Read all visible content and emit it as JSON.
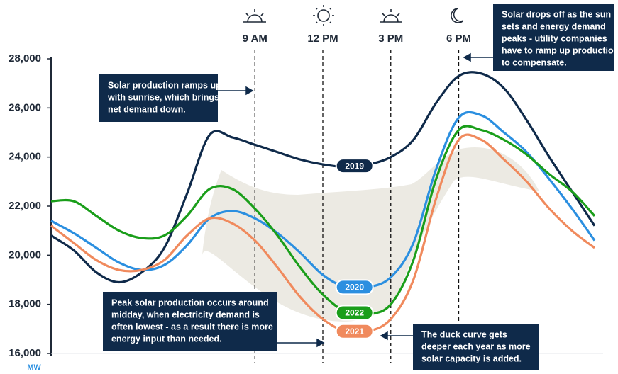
{
  "chart_data": {
    "type": "line",
    "y_label": "MW",
    "x": [
      0,
      1,
      2,
      3,
      4,
      5,
      6,
      7,
      8,
      9,
      10,
      11,
      12,
      13,
      14,
      15,
      16,
      17,
      18,
      19,
      20,
      21,
      22,
      23,
      24
    ],
    "xlim": [
      0,
      24
    ],
    "xticks": [
      {
        "value": 9,
        "label": "9 AM"
      },
      {
        "value": 12,
        "label": "12 PM"
      },
      {
        "value": 15,
        "label": "3 PM"
      },
      {
        "value": 18,
        "label": "6 PM"
      }
    ],
    "ylim": [
      16000,
      28000
    ],
    "yticks": [
      {
        "value": 16000,
        "label": "16,000"
      },
      {
        "value": 18000,
        "label": "18,000"
      },
      {
        "value": 20000,
        "label": "20,000"
      },
      {
        "value": 22000,
        "label": "22,000"
      },
      {
        "value": 24000,
        "label": "24,000"
      },
      {
        "value": 26000,
        "label": "26,000"
      },
      {
        "value": 28000,
        "label": "28,000"
      }
    ],
    "series": [
      {
        "name": "2019",
        "color": "#0f2a4a",
        "values": [
          20800,
          20200,
          19300,
          18900,
          19300,
          20300,
          22500,
          24900,
          24800,
          24500,
          24200,
          23900,
          23700,
          23600,
          23700,
          24000,
          24700,
          26200,
          27300,
          27400,
          26800,
          25500,
          24000,
          22600,
          21200
        ]
      },
      {
        "name": "2020",
        "color": "#2b8fe0",
        "values": [
          21400,
          20900,
          20300,
          19700,
          19400,
          19600,
          20400,
          21500,
          21800,
          21500,
          20900,
          20100,
          19200,
          18700,
          18700,
          19100,
          20500,
          23500,
          25600,
          25700,
          25000,
          24200,
          23100,
          21900,
          20600
        ]
      },
      {
        "name": "2022",
        "color": "#1a9e1a",
        "values": [
          22200,
          22200,
          21600,
          21000,
          20700,
          20800,
          21600,
          22700,
          22700,
          21900,
          20800,
          19500,
          18400,
          17700,
          17600,
          18000,
          19800,
          23100,
          25100,
          25100,
          24700,
          24100,
          23300,
          22600,
          21600
        ]
      },
      {
        "name": "2021",
        "color": "#f08a5d",
        "values": [
          21200,
          20500,
          19800,
          19400,
          19400,
          19800,
          20800,
          21500,
          21300,
          20600,
          19500,
          18300,
          17400,
          16900,
          16900,
          17400,
          19000,
          22300,
          24700,
          24700,
          23900,
          23000,
          21900,
          21000,
          20300
        ]
      }
    ],
    "annotations": [
      {
        "lines": [
          "Solar production ramps up",
          "with sunrise, which brings",
          "net demand down."
        ]
      },
      {
        "lines": [
          "Solar drops off as the sun",
          "sets and energy demand",
          "peaks - utility companies",
          "have to ramp up production",
          "to compensate."
        ]
      },
      {
        "lines": [
          "Peak solar production occurs around",
          "midday, when electricity demand is",
          "often lowest - as a result there is more",
          "energy input than needed."
        ]
      },
      {
        "lines": [
          "The duck curve gets",
          "deeper each year as more",
          "solar capacity is added."
        ]
      }
    ]
  }
}
